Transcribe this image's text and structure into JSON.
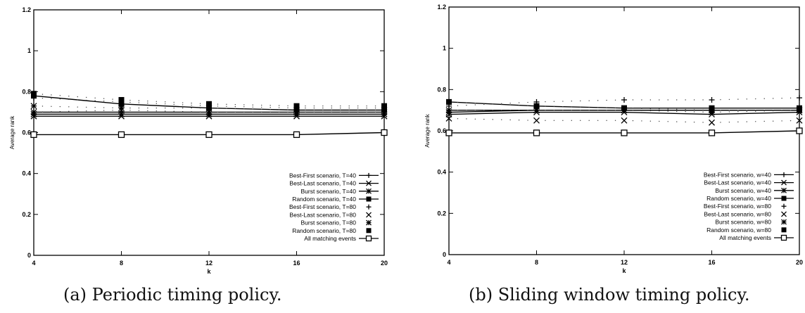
{
  "chart_data": [
    {
      "type": "line",
      "caption": "(a) Periodic timing policy.",
      "xlabel": "k",
      "ylabel": "Average rank",
      "x": [
        4,
        8,
        12,
        16,
        20
      ],
      "xlim": [
        4,
        20
      ],
      "ylim": [
        0,
        1.2
      ],
      "xticks": [
        "4",
        "8",
        "12",
        "16",
        "20"
      ],
      "yticks": [
        "0",
        "0.2",
        "0.4",
        "0.6",
        "0.8",
        "1",
        "1.2"
      ],
      "legend_position": "bottom-right",
      "series": [
        {
          "name": "Best-First scenario, T=40",
          "marker": "plus",
          "line": true,
          "values": [
            0.7,
            0.7,
            0.7,
            0.7,
            0.7
          ]
        },
        {
          "name": "Best-Last scenario, T=40",
          "marker": "x",
          "line": true,
          "values": [
            0.68,
            0.68,
            0.68,
            0.68,
            0.68
          ]
        },
        {
          "name": "Burst scenario, T=40",
          "marker": "star",
          "line": true,
          "values": [
            0.69,
            0.69,
            0.69,
            0.69,
            0.69
          ]
        },
        {
          "name": "Random scenario, T=40",
          "marker": "filled-square",
          "line": true,
          "values": [
            0.78,
            0.74,
            0.72,
            0.71,
            0.71
          ]
        },
        {
          "name": "Best-First scenario, T=80",
          "marker": "plus",
          "line": false,
          "values": [
            0.77,
            0.75,
            0.73,
            0.72,
            0.72
          ]
        },
        {
          "name": "Best-Last scenario, T=80",
          "marker": "x",
          "line": false,
          "values": [
            0.7,
            0.71,
            0.7,
            0.7,
            0.7
          ]
        },
        {
          "name": "Burst scenario, T=80",
          "marker": "star",
          "line": false,
          "values": [
            0.73,
            0.72,
            0.72,
            0.71,
            0.71
          ]
        },
        {
          "name": "Random scenario, T=80",
          "marker": "filled-square",
          "line": false,
          "values": [
            0.79,
            0.76,
            0.74,
            0.73,
            0.73
          ]
        },
        {
          "name": "All matching events",
          "marker": "open-square",
          "line": true,
          "values": [
            0.59,
            0.59,
            0.59,
            0.59,
            0.6
          ]
        }
      ]
    },
    {
      "type": "line",
      "caption": "(b) Sliding window timing policy.",
      "xlabel": "k",
      "ylabel": "Average rank",
      "x": [
        4,
        8,
        12,
        16,
        20
      ],
      "xlim": [
        4,
        20
      ],
      "ylim": [
        0,
        1.2
      ],
      "xticks": [
        "4",
        "8",
        "12",
        "16",
        "20"
      ],
      "yticks": [
        "0",
        "0.2",
        "0.4",
        "0.6",
        "0.8",
        "1",
        "1.2"
      ],
      "legend_position": "bottom-right",
      "series": [
        {
          "name": "Best-First scenario, w=40",
          "marker": "plus",
          "line": true,
          "values": [
            0.7,
            0.7,
            0.7,
            0.7,
            0.7
          ]
        },
        {
          "name": "Best-Last scenario, w=40",
          "marker": "x",
          "line": true,
          "values": [
            0.68,
            0.69,
            0.69,
            0.68,
            0.69
          ]
        },
        {
          "name": "Burst scenario, w=40",
          "marker": "star",
          "line": true,
          "values": [
            0.69,
            0.7,
            0.7,
            0.7,
            0.7
          ]
        },
        {
          "name": "Random scenario, w=40",
          "marker": "filled-square",
          "line": true,
          "values": [
            0.74,
            0.72,
            0.71,
            0.71,
            0.71
          ]
        },
        {
          "name": "Best-First scenario, w=80",
          "marker": "plus",
          "line": false,
          "values": [
            0.72,
            0.74,
            0.75,
            0.75,
            0.76
          ]
        },
        {
          "name": "Best-Last scenario, w=80",
          "marker": "x",
          "line": false,
          "values": [
            0.66,
            0.65,
            0.65,
            0.64,
            0.65
          ]
        },
        {
          "name": "Burst scenario, w=80",
          "marker": "star",
          "line": false,
          "values": [
            0.7,
            0.7,
            0.7,
            0.69,
            0.7
          ]
        },
        {
          "name": "Random scenario, w=80",
          "marker": "filled-square",
          "line": false,
          "values": [
            0.74,
            0.72,
            0.71,
            0.7,
            0.7
          ]
        },
        {
          "name": "All matching events",
          "marker": "open-square",
          "line": true,
          "values": [
            0.59,
            0.59,
            0.59,
            0.59,
            0.6
          ]
        }
      ]
    }
  ]
}
